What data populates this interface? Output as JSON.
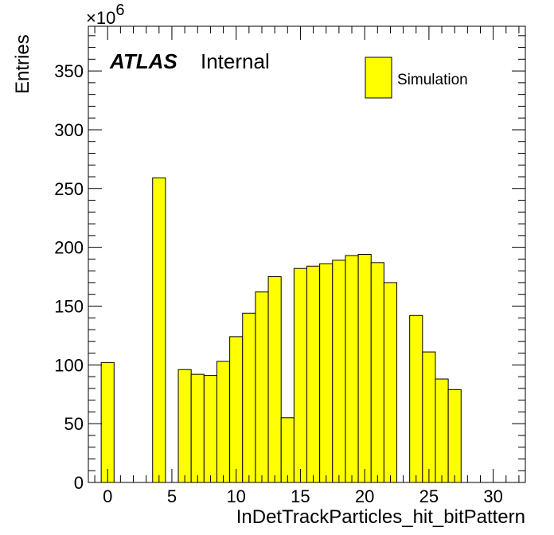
{
  "chart_data": {
    "type": "bar",
    "histogram": true,
    "xlabel": "InDetTrackParticles_hit_bitPattern",
    "ylabel": "Entries",
    "multiplier_text": "×10",
    "multiplier_exp": "6",
    "xlim": [
      -1.5,
      32.5
    ],
    "ylim": [
      0,
      388
    ],
    "xticks": [
      0,
      5,
      10,
      15,
      20,
      25,
      30
    ],
    "yticks": [
      0,
      50,
      100,
      150,
      200,
      250,
      300,
      350
    ],
    "bin_width": 1,
    "x": [
      0,
      4,
      6,
      7,
      8,
      9,
      10,
      11,
      12,
      13,
      14,
      15,
      16,
      17,
      18,
      19,
      20,
      21,
      22,
      24,
      25,
      26,
      27
    ],
    "values": [
      102,
      259,
      96,
      92,
      91,
      103,
      124,
      144,
      162,
      175,
      55,
      182,
      184,
      186,
      189,
      193,
      194,
      187,
      170,
      142,
      111,
      88,
      79
    ],
    "bar_color": "#ffff00",
    "edge_color": "#000000",
    "legend": {
      "entries": [
        {
          "label": "Simulation",
          "color": "#ffff00"
        }
      ],
      "placement": "top-right"
    },
    "annotations": {
      "atlas": "ATLAS",
      "internal": "Internal"
    }
  }
}
